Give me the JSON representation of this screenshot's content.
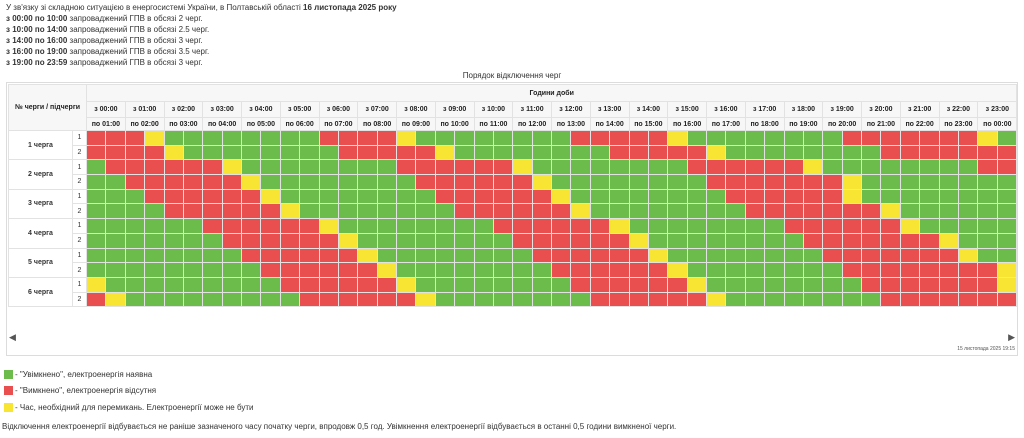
{
  "announcement": {
    "intro_prefix": "У зв'язку зі складною ситуацією в енергосистемі України, в Полтавській області",
    "intro_date": "16 листопада 2025 року",
    "periods": [
      {
        "range": "з 00:00 по 10:00",
        "text": "запроваджений ГПВ в обсязі 2 черг."
      },
      {
        "range": "з 10:00 по 14:00",
        "text": "запроваджений ГПВ в обсязі 2.5 черг."
      },
      {
        "range": "з 14:00 по 16:00",
        "text": "запроваджений ГПВ в обсязі 3 черг."
      },
      {
        "range": "з 16:00 по 19:00",
        "text": "запроваджений ГПВ в обсязі 3.5 черг."
      },
      {
        "range": "з 19:00 по 23:59",
        "text": "запроваджений ГПВ в обсязі 3 черг."
      }
    ]
  },
  "schedule": {
    "title": "Порядок відключення черг",
    "corner_header": "№ черги / підчерги",
    "hours_header": "Години доби",
    "hour_from": [
      "з 00:00",
      "з 01:00",
      "з 02:00",
      "з 03:00",
      "з 04:00",
      "з 05:00",
      "з 06:00",
      "з 07:00",
      "з 08:00",
      "з 09:00",
      "з 10:00",
      "з 11:00",
      "з 12:00",
      "з 13:00",
      "з 14:00",
      "з 15:00",
      "з 16:00",
      "з 17:00",
      "з 18:00",
      "з 19:00",
      "з 20:00",
      "з 21:00",
      "з 22:00",
      "з 23:00"
    ],
    "hour_to": [
      "по 01:00",
      "по 02:00",
      "по 03:00",
      "по 04:00",
      "по 05:00",
      "по 06:00",
      "по 07:00",
      "по 08:00",
      "по 09:00",
      "по 10:00",
      "по 11:00",
      "по 12:00",
      "по 13:00",
      "по 14:00",
      "по 15:00",
      "по 16:00",
      "по 17:00",
      "по 18:00",
      "по 19:00",
      "по 20:00",
      "по 21:00",
      "по 22:00",
      "по 23:00",
      "по 00:00"
    ],
    "queues": [
      {
        "label": "1 черга",
        "subqueues": [
          {
            "label": "1",
            "cells": "RRRYGGGGGGGGRRRRYGGGGGGGGRRRRRYGGGGGGGGRRRRRRRYGGGGG"
          },
          {
            "label": "2",
            "cells": "RRRRYGGGGGGGGRRRRRYGGGGGGGGRRRRRYGGGGGGGGRRRRRRRRYGGG"
          }
        ]
      },
      {
        "label": "2 черга",
        "subqueues": [
          {
            "label": "1",
            "cells": "GRRRRRRYGGGGGGGGRRRRRRYGGGGGGGGRRRRRRYGGGGGGGGRRRRRRR"
          },
          {
            "label": "2",
            "cells": "GGRRRRRRYGGGGGGGGRRRRRRYGGGGGGGGRRRRRRRYGGGGGGGGRRRRY"
          }
        ]
      },
      {
        "label": "3 черга",
        "subqueues": [
          {
            "label": "1",
            "cells": "GGGRRRRRRYGGGGGGGGRRRRRRYGGGGGGGGRRRRRRYGGGGGGGGRRRRR"
          },
          {
            "label": "2",
            "cells": "GGGGRRRRRRYGGGGGGGGRRRRRRYGGGGGGGGRRRRRRRYGGGGGGGGRRR"
          }
        ]
      },
      {
        "label": "4 черга",
        "subqueues": [
          {
            "label": "1",
            "cells": "GGGGGGRRRRRRYGGGGGGGGRRRRRRYGGGGGGGGRRRRRRYGGGGGGGGRR"
          },
          {
            "label": "2",
            "cells": "GGGGGGGRRRRRRYGGGGGGGGRRRRRRYGGGGGGGGRRRRRRRYGGGGGGGG"
          }
        ]
      },
      {
        "label": "5 черга",
        "subqueues": [
          {
            "label": "1",
            "cells": "GGGGGGGGRRRRRRYGGGGGGGGRRRRRRYGGGGGGGGRRRRRRRYGGGGGGG"
          },
          {
            "label": "2",
            "cells": "GGGGGGGGGRRRRRRYGGGGGGGGRRRRRRYGGGGGGGGRRRRRRRRYGGGGG"
          }
        ]
      },
      {
        "label": "6 черга",
        "subqueues": [
          {
            "label": "1",
            "cells": "YGGGGGGGGGRRRRRRYGGGGGGGGRRRRRRYGGGGGGGGRRRRRRRYGGGGR"
          },
          {
            "label": "2",
            "cells": "RYGGGGGGGGGRRRRRRYGGGGGGGGRRRRRRYGGGGGGGGRRRRRRRRYGGR"
          }
        ]
      }
    ],
    "cell_colors": {
      "G": "#6cbc4c",
      "R": "#ea4f4f",
      "Y": "#f7e433"
    }
  },
  "scroll": {
    "left_icon": "chevron-left-icon",
    "right_icon": "chevron-right-icon",
    "left_glyph": "◀",
    "right_glyph": "▶"
  },
  "timestamp": "15 листопада 2025 19:15",
  "legend": [
    {
      "color": "#6cbc4c",
      "text": "- \"Увімкнено\", електроенергія наявна"
    },
    {
      "color": "#ea4f4f",
      "text": "- \"Вимкнено\", електроенергія відсутня"
    },
    {
      "color": "#f7e433",
      "text": "- Час, необхідний для перемикань. Електроенергії може не бути"
    }
  ],
  "footnote": "Відключення електроенергії відбувається не раніше зазначеного часу початку черги, впродовж 0,5 год. Увімкнення електроенергії відбувається в останні 0,5 години вимкненої черги."
}
